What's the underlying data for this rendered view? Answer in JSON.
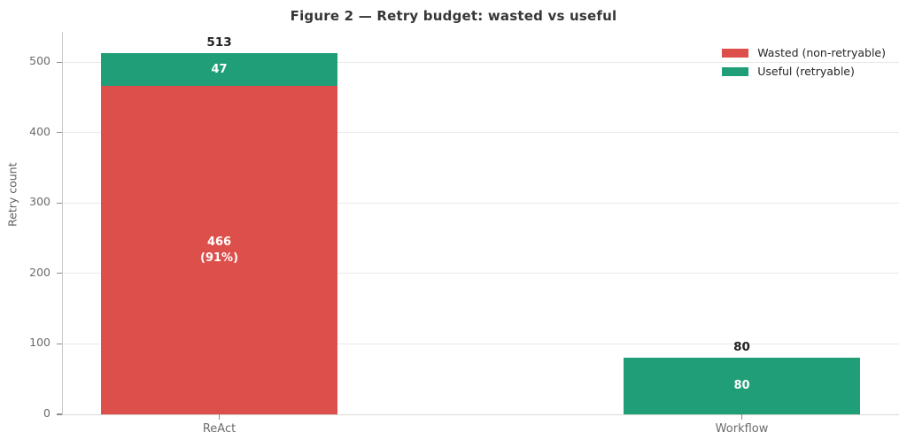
{
  "title": "Figure 2 — Retry budget: wasted vs useful",
  "chart_data": {
    "type": "bar",
    "stacked": true,
    "title": "Figure 2 — Retry budget: wasted vs useful",
    "xlabel": "",
    "ylabel": "Retry count",
    "categories": [
      "ReAct",
      "Workflow"
    ],
    "series": [
      {
        "key": "wasted",
        "name": "Wasted (non-retryable)",
        "color": "#dd4f4a",
        "values": [
          466,
          0
        ],
        "labels": [
          "466\n(91%)",
          ""
        ]
      },
      {
        "key": "useful",
        "name": "Useful (retryable)",
        "color": "#1f9e77",
        "values": [
          47,
          80
        ],
        "labels": [
          "47",
          "80"
        ]
      }
    ],
    "totals": [
      513,
      80
    ],
    "yticks": [
      0,
      100,
      200,
      300,
      400,
      500
    ],
    "ylim": [
      0,
      543
    ],
    "grid": true,
    "legend_position": "upper right"
  }
}
